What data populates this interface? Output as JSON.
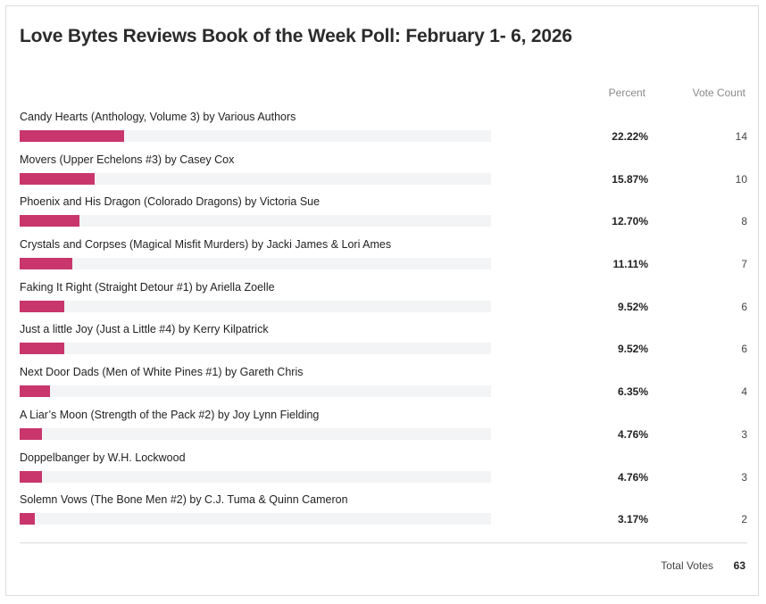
{
  "poll": {
    "title": "Love Bytes Reviews Book of the Week Poll: February 1- 6, 2026",
    "columns": {
      "percent": "Percent",
      "votes": "Vote Count"
    },
    "bar_color": "#c8366c",
    "track_color": "#f3f4f5",
    "options": [
      {
        "label": "Candy Hearts (Anthology, Volume 3) by Various Authors",
        "percent": "22.22%",
        "fraction": 0.2222,
        "votes": "14"
      },
      {
        "label": "Movers (Upper Echelons #3) by Casey Cox",
        "percent": "15.87%",
        "fraction": 0.1587,
        "votes": "10"
      },
      {
        "label": "Phoenix and His Dragon (Colorado Dragons) by Victoria Sue",
        "percent": "12.70%",
        "fraction": 0.127,
        "votes": "8"
      },
      {
        "label": "Crystals and Corpses (Magical Misfit Murders) by Jacki James & Lori Ames",
        "percent": "11.11%",
        "fraction": 0.1111,
        "votes": "7"
      },
      {
        "label": "Faking It Right (Straight Detour #1) by Ariella Zoelle",
        "percent": "9.52%",
        "fraction": 0.0952,
        "votes": "6"
      },
      {
        "label": "Just a little Joy (Just a Little #4) by Kerry Kilpatrick",
        "percent": "9.52%",
        "fraction": 0.0952,
        "votes": "6"
      },
      {
        "label": "Next Door Dads (Men of White Pines #1) by Gareth Chris",
        "percent": "6.35%",
        "fraction": 0.0635,
        "votes": "4"
      },
      {
        "label": "A Liar’s Moon (Strength of the Pack #2) by Joy Lynn Fielding",
        "percent": "4.76%",
        "fraction": 0.0476,
        "votes": "3"
      },
      {
        "label": "Doppelbanger by W.H. Lockwood",
        "percent": "4.76%",
        "fraction": 0.0476,
        "votes": "3"
      },
      {
        "label": "Solemn Vows (The Bone Men #2) by C.J. Tuma & Quinn Cameron",
        "percent": "3.17%",
        "fraction": 0.0317,
        "votes": "2"
      }
    ],
    "total_label": "Total Votes",
    "total_value": "63"
  }
}
